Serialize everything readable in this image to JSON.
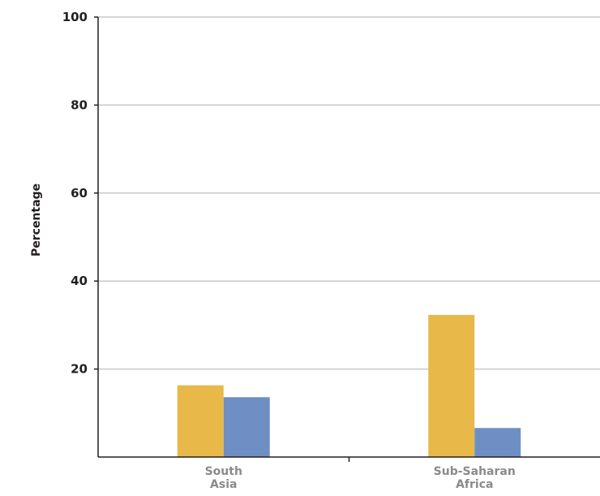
{
  "chart_data": {
    "type": "bar",
    "ylabel": "Percentage",
    "xlabel": "",
    "ylim": [
      0,
      100
    ],
    "yticks": [
      20,
      40,
      60,
      80,
      100
    ],
    "grid": true,
    "categories": [
      [
        "South",
        "Asia"
      ],
      [
        "Sub-Saharan",
        "Africa"
      ]
    ],
    "series": [
      {
        "color": "#e8b948",
        "values": [
          16.3,
          32.3
        ]
      },
      {
        "color": "#6f8fc4",
        "values": [
          13.6,
          6.6
        ]
      }
    ],
    "colors": {
      "grid": "#c8c8c8",
      "axis": "#231f20"
    }
  }
}
